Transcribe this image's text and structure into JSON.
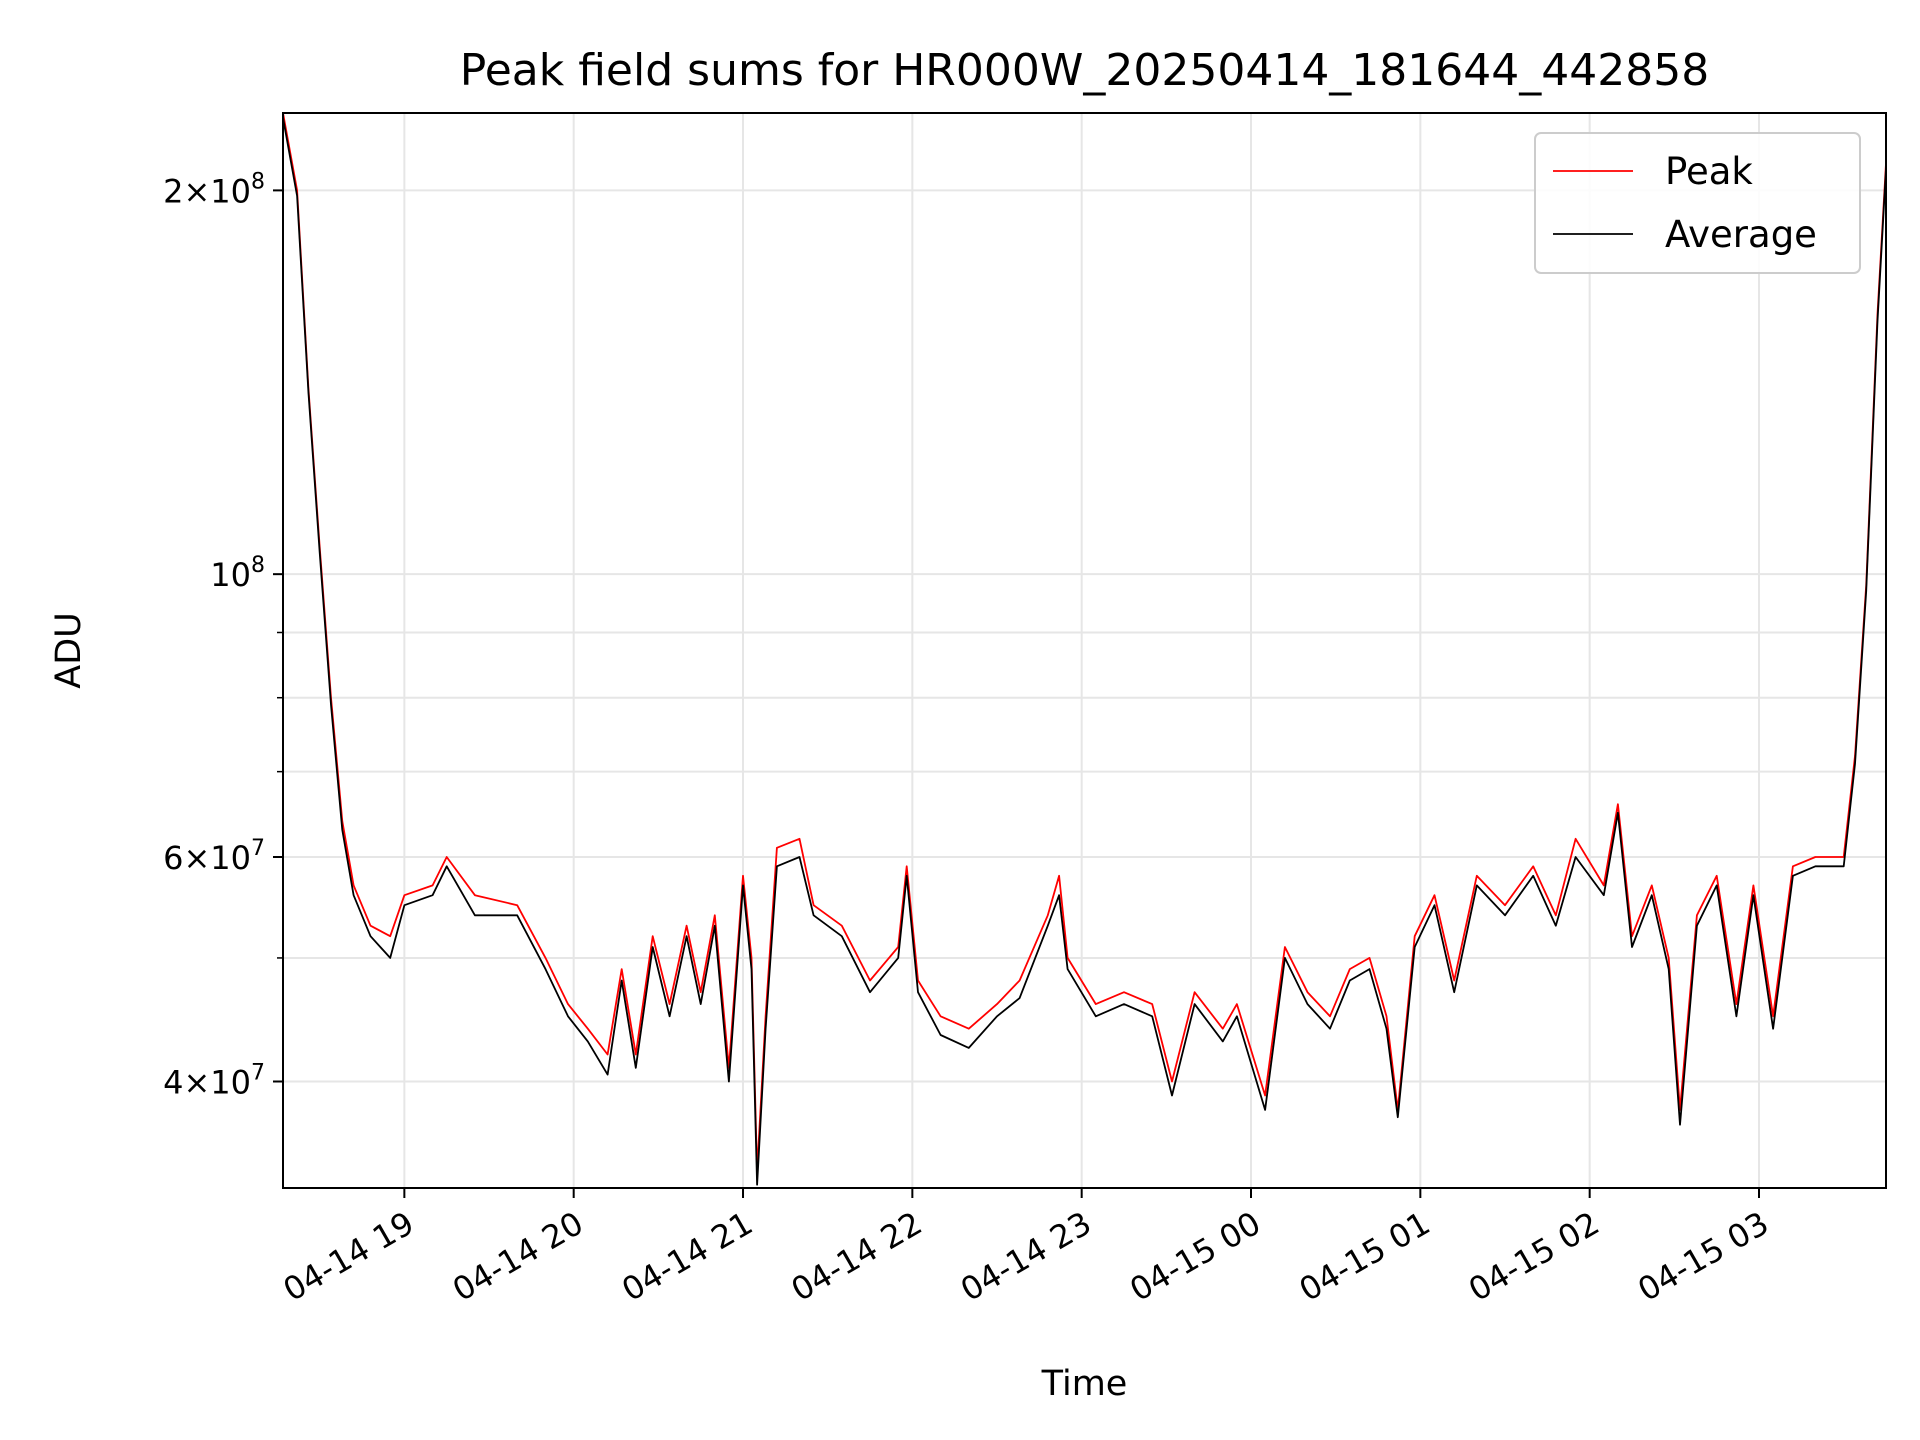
{
  "chart_data": {
    "type": "line",
    "title": "Peak field sums for HR000W_20250414_181644_442858",
    "xlabel": "Time",
    "ylabel": "ADU",
    "y_scale": "log",
    "ylim": [
      33000000,
      230000000
    ],
    "xlim": [
      "2025-04-14 18:17",
      "2025-04-15 03:45"
    ],
    "grid": true,
    "legend_position": "top-right",
    "x_ticks": [
      {
        "label": "04-14 19",
        "x": "2025-04-14 19:00"
      },
      {
        "label": "04-14 20",
        "x": "2025-04-14 20:00"
      },
      {
        "label": "04-14 21",
        "x": "2025-04-14 21:00"
      },
      {
        "label": "04-14 22",
        "x": "2025-04-14 22:00"
      },
      {
        "label": "04-14 23",
        "x": "2025-04-14 23:00"
      },
      {
        "label": "04-15 00",
        "x": "2025-04-15 00:00"
      },
      {
        "label": "04-15 01",
        "x": "2025-04-15 01:00"
      },
      {
        "label": "04-15 02",
        "x": "2025-04-15 02:00"
      },
      {
        "label": "04-15 03",
        "x": "2025-04-15 03:00"
      }
    ],
    "y_ticks_major": [
      {
        "base": "10",
        "exp": "8",
        "coef": "",
        "value": 100000000
      },
      {
        "base": "10",
        "exp": "8",
        "coef": "2",
        "value": 200000000
      },
      {
        "base": "10",
        "exp": "7",
        "coef": "4",
        "value": 40000000
      },
      {
        "base": "10",
        "exp": "7",
        "coef": "6",
        "value": 60000000
      }
    ],
    "y_ticks_minor": [
      50000000,
      70000000,
      80000000,
      90000000
    ],
    "series": [
      {
        "name": "Peak",
        "color": "#ff0000",
        "points": [
          [
            "2025-04-14 18:17",
            230000000
          ],
          [
            "2025-04-14 18:22",
            200000000
          ],
          [
            "2025-04-14 18:26",
            140000000
          ],
          [
            "2025-04-14 18:30",
            105000000
          ],
          [
            "2025-04-14 18:34",
            80000000
          ],
          [
            "2025-04-14 18:38",
            64000000
          ],
          [
            "2025-04-14 18:42",
            57000000
          ],
          [
            "2025-04-14 18:48",
            53000000
          ],
          [
            "2025-04-14 18:55",
            52000000
          ],
          [
            "2025-04-14 19:00",
            56000000
          ],
          [
            "2025-04-14 19:10",
            57000000
          ],
          [
            "2025-04-14 19:15",
            60000000
          ],
          [
            "2025-04-14 19:25",
            56000000
          ],
          [
            "2025-04-14 19:40",
            55000000
          ],
          [
            "2025-04-14 19:50",
            50000000
          ],
          [
            "2025-04-14 19:58",
            46000000
          ],
          [
            "2025-04-14 20:05",
            44000000
          ],
          [
            "2025-04-14 20:12",
            42000000
          ],
          [
            "2025-04-14 20:17",
            49000000
          ],
          [
            "2025-04-14 20:22",
            42000000
          ],
          [
            "2025-04-14 20:28",
            52000000
          ],
          [
            "2025-04-14 20:34",
            46000000
          ],
          [
            "2025-04-14 20:40",
            53000000
          ],
          [
            "2025-04-14 20:45",
            47000000
          ],
          [
            "2025-04-14 20:50",
            54000000
          ],
          [
            "2025-04-14 20:55",
            41000000
          ],
          [
            "2025-04-14 21:00",
            58000000
          ],
          [
            "2025-04-14 21:03",
            50000000
          ],
          [
            "2025-04-14 21:05",
            34000000
          ],
          [
            "2025-04-14 21:08",
            45000000
          ],
          [
            "2025-04-14 21:12",
            61000000
          ],
          [
            "2025-04-14 21:20",
            62000000
          ],
          [
            "2025-04-14 21:25",
            55000000
          ],
          [
            "2025-04-14 21:35",
            53000000
          ],
          [
            "2025-04-14 21:45",
            48000000
          ],
          [
            "2025-04-14 21:55",
            51000000
          ],
          [
            "2025-04-14 21:58",
            59000000
          ],
          [
            "2025-04-14 22:02",
            48000000
          ],
          [
            "2025-04-14 22:10",
            45000000
          ],
          [
            "2025-04-14 22:20",
            44000000
          ],
          [
            "2025-04-14 22:30",
            46000000
          ],
          [
            "2025-04-14 22:38",
            48000000
          ],
          [
            "2025-04-14 22:48",
            54000000
          ],
          [
            "2025-04-14 22:52",
            58000000
          ],
          [
            "2025-04-14 22:55",
            50000000
          ],
          [
            "2025-04-14 23:05",
            46000000
          ],
          [
            "2025-04-14 23:15",
            47000000
          ],
          [
            "2025-04-14 23:25",
            46000000
          ],
          [
            "2025-04-14 23:32",
            40000000
          ],
          [
            "2025-04-14 23:40",
            47000000
          ],
          [
            "2025-04-14 23:50",
            44000000
          ],
          [
            "2025-04-14 23:55",
            46000000
          ],
          [
            "2025-04-15 00:05",
            39000000
          ],
          [
            "2025-04-15 00:12",
            51000000
          ],
          [
            "2025-04-15 00:20",
            47000000
          ],
          [
            "2025-04-15 00:28",
            45000000
          ],
          [
            "2025-04-15 00:35",
            49000000
          ],
          [
            "2025-04-15 00:42",
            50000000
          ],
          [
            "2025-04-15 00:48",
            45000000
          ],
          [
            "2025-04-15 00:52",
            38000000
          ],
          [
            "2025-04-15 00:58",
            52000000
          ],
          [
            "2025-04-15 01:05",
            56000000
          ],
          [
            "2025-04-15 01:12",
            48000000
          ],
          [
            "2025-04-15 01:20",
            58000000
          ],
          [
            "2025-04-15 01:30",
            55000000
          ],
          [
            "2025-04-15 01:40",
            59000000
          ],
          [
            "2025-04-15 01:48",
            54000000
          ],
          [
            "2025-04-15 01:55",
            62000000
          ],
          [
            "2025-04-15 02:05",
            57000000
          ],
          [
            "2025-04-15 02:10",
            66000000
          ],
          [
            "2025-04-15 02:15",
            52000000
          ],
          [
            "2025-04-15 02:22",
            57000000
          ],
          [
            "2025-04-15 02:28",
            50000000
          ],
          [
            "2025-04-15 02:32",
            38000000
          ],
          [
            "2025-04-15 02:38",
            54000000
          ],
          [
            "2025-04-15 02:45",
            58000000
          ],
          [
            "2025-04-15 02:52",
            46000000
          ],
          [
            "2025-04-15 02:58",
            57000000
          ],
          [
            "2025-04-15 03:05",
            45000000
          ],
          [
            "2025-04-15 03:12",
            59000000
          ],
          [
            "2025-04-15 03:20",
            60000000
          ],
          [
            "2025-04-15 03:30",
            60000000
          ],
          [
            "2025-04-15 03:34",
            72000000
          ],
          [
            "2025-04-15 03:38",
            98000000
          ],
          [
            "2025-04-15 03:42",
            160000000
          ],
          [
            "2025-04-15 03:45",
            210000000
          ]
        ]
      },
      {
        "name": "Average",
        "color": "#000000",
        "points": [
          [
            "2025-04-14 18:17",
            228000000
          ],
          [
            "2025-04-14 18:22",
            198000000
          ],
          [
            "2025-04-14 18:26",
            139000000
          ],
          [
            "2025-04-14 18:30",
            104000000
          ],
          [
            "2025-04-14 18:34",
            79000000
          ],
          [
            "2025-04-14 18:38",
            63000000
          ],
          [
            "2025-04-14 18:42",
            56000000
          ],
          [
            "2025-04-14 18:48",
            52000000
          ],
          [
            "2025-04-14 18:55",
            50000000
          ],
          [
            "2025-04-14 19:00",
            55000000
          ],
          [
            "2025-04-14 19:10",
            56000000
          ],
          [
            "2025-04-14 19:15",
            59000000
          ],
          [
            "2025-04-14 19:25",
            54000000
          ],
          [
            "2025-04-14 19:40",
            54000000
          ],
          [
            "2025-04-14 19:50",
            49000000
          ],
          [
            "2025-04-14 19:58",
            45000000
          ],
          [
            "2025-04-14 20:05",
            43000000
          ],
          [
            "2025-04-14 20:12",
            40500000
          ],
          [
            "2025-04-14 20:17",
            48000000
          ],
          [
            "2025-04-14 20:22",
            41000000
          ],
          [
            "2025-04-14 20:28",
            51000000
          ],
          [
            "2025-04-14 20:34",
            45000000
          ],
          [
            "2025-04-14 20:40",
            52000000
          ],
          [
            "2025-04-14 20:45",
            46000000
          ],
          [
            "2025-04-14 20:50",
            53000000
          ],
          [
            "2025-04-14 20:55",
            40000000
          ],
          [
            "2025-04-14 21:00",
            57000000
          ],
          [
            "2025-04-14 21:03",
            49000000
          ],
          [
            "2025-04-14 21:05",
            33200000
          ],
          [
            "2025-04-14 21:08",
            44000000
          ],
          [
            "2025-04-14 21:12",
            59000000
          ],
          [
            "2025-04-14 21:20",
            60000000
          ],
          [
            "2025-04-14 21:25",
            54000000
          ],
          [
            "2025-04-14 21:35",
            52000000
          ],
          [
            "2025-04-14 21:45",
            47000000
          ],
          [
            "2025-04-14 21:55",
            50000000
          ],
          [
            "2025-04-14 21:58",
            58000000
          ],
          [
            "2025-04-14 22:02",
            47000000
          ],
          [
            "2025-04-14 22:10",
            43500000
          ],
          [
            "2025-04-14 22:20",
            42500000
          ],
          [
            "2025-04-14 22:30",
            45000000
          ],
          [
            "2025-04-14 22:38",
            46500000
          ],
          [
            "2025-04-14 22:48",
            53000000
          ],
          [
            "2025-04-14 22:52",
            56000000
          ],
          [
            "2025-04-14 22:55",
            49000000
          ],
          [
            "2025-04-14 23:05",
            45000000
          ],
          [
            "2025-04-14 23:15",
            46000000
          ],
          [
            "2025-04-14 23:25",
            45000000
          ],
          [
            "2025-04-14 23:32",
            39000000
          ],
          [
            "2025-04-14 23:40",
            46000000
          ],
          [
            "2025-04-14 23:50",
            43000000
          ],
          [
            "2025-04-14 23:55",
            45000000
          ],
          [
            "2025-04-15 00:05",
            38000000
          ],
          [
            "2025-04-15 00:12",
            50000000
          ],
          [
            "2025-04-15 00:20",
            46000000
          ],
          [
            "2025-04-15 00:28",
            44000000
          ],
          [
            "2025-04-15 00:35",
            48000000
          ],
          [
            "2025-04-15 00:42",
            49000000
          ],
          [
            "2025-04-15 00:48",
            44000000
          ],
          [
            "2025-04-15 00:52",
            37500000
          ],
          [
            "2025-04-15 00:58",
            51000000
          ],
          [
            "2025-04-15 01:05",
            55000000
          ],
          [
            "2025-04-15 01:12",
            47000000
          ],
          [
            "2025-04-15 01:20",
            57000000
          ],
          [
            "2025-04-15 01:30",
            54000000
          ],
          [
            "2025-04-15 01:40",
            58000000
          ],
          [
            "2025-04-15 01:48",
            53000000
          ],
          [
            "2025-04-15 01:55",
            60000000
          ],
          [
            "2025-04-15 02:05",
            56000000
          ],
          [
            "2025-04-15 02:10",
            65000000
          ],
          [
            "2025-04-15 02:15",
            51000000
          ],
          [
            "2025-04-15 02:22",
            56000000
          ],
          [
            "2025-04-15 02:28",
            49000000
          ],
          [
            "2025-04-15 02:32",
            37000000
          ],
          [
            "2025-04-15 02:38",
            53000000
          ],
          [
            "2025-04-15 02:45",
            57000000
          ],
          [
            "2025-04-15 02:52",
            45000000
          ],
          [
            "2025-04-15 02:58",
            56000000
          ],
          [
            "2025-04-15 03:05",
            44000000
          ],
          [
            "2025-04-15 03:12",
            58000000
          ],
          [
            "2025-04-15 03:20",
            59000000
          ],
          [
            "2025-04-15 03:30",
            59000000
          ],
          [
            "2025-04-15 03:34",
            71000000
          ],
          [
            "2025-04-15 03:38",
            97000000
          ],
          [
            "2025-04-15 03:42",
            158000000
          ],
          [
            "2025-04-15 03:45",
            208000000
          ]
        ]
      }
    ]
  }
}
